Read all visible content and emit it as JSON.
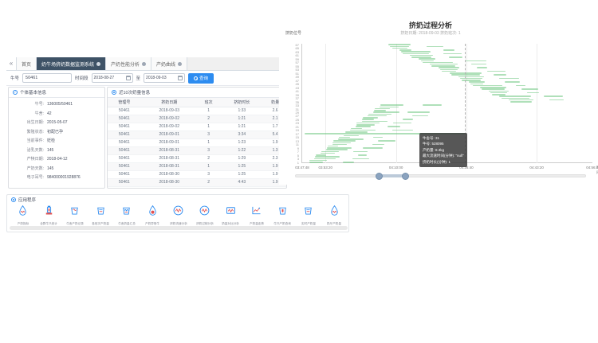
{
  "tabs": {
    "collapse_label": "«",
    "items": [
      {
        "label": "首页",
        "closable": false,
        "active": false
      },
      {
        "label": "奶牛场挤奶数据监测系统",
        "closable": true,
        "active": true
      },
      {
        "label": "产奶性能分析",
        "closable": true,
        "active": false
      },
      {
        "label": "产奶曲线",
        "closable": true,
        "active": false
      }
    ]
  },
  "search": {
    "cow_label": "牛号",
    "cow_value": "50461",
    "period_label": "时间段",
    "start_date": "2018-08-27",
    "to_label": "至",
    "end_date": "2018-09-03",
    "query_label": "查询"
  },
  "info": {
    "title": "个体基本信息",
    "rows": [
      {
        "label": "牛号:",
        "value": "136005/50461"
      },
      {
        "label": "牛舍:",
        "value": "42"
      },
      {
        "label": "出生日期:",
        "value": "2015-05-07"
      },
      {
        "label": "繁殖状态:",
        "value": "初配已孕"
      },
      {
        "label": "当前事件:",
        "value": "妊检"
      },
      {
        "label": "泌乳天数:",
        "value": "145"
      },
      {
        "label": "产犊日期:",
        "value": "2018-04-12"
      },
      {
        "label": "产奶天数:",
        "value": "145"
      },
      {
        "label": "电子耳号:",
        "value": "984000001928876"
      }
    ]
  },
  "records": {
    "title": "近10次奶量信息",
    "headers": [
      "管理号",
      "挤奶日期",
      "班次",
      "挤奶时长",
      "奶量"
    ],
    "rows": [
      [
        "50461",
        "2018-09-03",
        "1",
        "1:33",
        "2.6"
      ],
      [
        "50461",
        "2018-09-02",
        "2",
        "1:21",
        "2.1"
      ],
      [
        "50461",
        "2018-09-02",
        "1",
        "1:21",
        "1.7"
      ],
      [
        "50461",
        "2018-09-01",
        "3",
        "3:34",
        "5.4"
      ],
      [
        "50461",
        "2018-09-01",
        "1",
        "1:23",
        "1.9"
      ],
      [
        "50461",
        "2018-08-31",
        "3",
        "1:22",
        "1.3"
      ],
      [
        "50461",
        "2018-08-31",
        "2",
        "1:29",
        "2.3"
      ],
      [
        "50461",
        "2018-08-31",
        "1",
        "1:25",
        "1.9"
      ],
      [
        "50461",
        "2018-08-30",
        "3",
        "1:25",
        "1.9"
      ],
      [
        "50461",
        "2018-08-30",
        "2",
        "4:43",
        "1.9"
      ]
    ]
  },
  "apps": {
    "title": "应用程序",
    "items": [
      {
        "label": "产奶指标",
        "icon": "drop-wave"
      },
      {
        "label": "全群牛只统计",
        "icon": "hydrant"
      },
      {
        "label": "牛舍产奶记录",
        "icon": "bucket-red"
      },
      {
        "label": "各班次产奶量",
        "icon": "bucket-lines"
      },
      {
        "label": "牛舍奶量汇总",
        "icon": "bucket-wave"
      },
      {
        "label": "产奶异常牛",
        "icon": "drop-red"
      },
      {
        "label": "挤奶流速分析",
        "icon": "circle-wave"
      },
      {
        "label": "挤奶过程分析",
        "icon": "circle-wave"
      },
      {
        "label": "奶量对比分析",
        "icon": "envelope-wave"
      },
      {
        "label": "产奶量走势",
        "icon": "chart-line"
      },
      {
        "label": "牛只产奶查询",
        "icon": "bucket-phone"
      },
      {
        "label": "实时产奶量",
        "icon": "bucket-lines"
      },
      {
        "label": "奶厅产奶量",
        "icon": "drop-wave"
      }
    ]
  },
  "chart_data": {
    "type": "gantt",
    "title": "挤奶过程分析",
    "subtitle": "挤奶日期: 2018-09-03    挤奶班次: 1",
    "ylabel": "挤奶位号",
    "xlabel": "时间",
    "bar_color": "rgba(109,199,128,0.55)",
    "x_start": "03:47:48",
    "x_end": "04:56:42",
    "x_total_seconds": 4134,
    "x_ticks": [
      {
        "sec": 0,
        "label": "03:47:48"
      },
      {
        "sec": 332,
        "label": "03:53:20"
      },
      {
        "sec": 1332,
        "label": "04:10:00"
      },
      {
        "sec": 2332,
        "label": "04:26:40"
      },
      {
        "sec": 3332,
        "label": "04:43:20"
      },
      {
        "sec": 4134,
        "label": "04:56:42"
      }
    ],
    "y_positions_max": 67,
    "y_tick_step": 2,
    "pointer_sec": 2310,
    "zoom_range": [
      0.29,
      0.38
    ],
    "tooltip": {
      "lines": [
        "牛舍号: 31",
        "牛号: 528095",
        "产奶量: 8.3kg",
        "最大流速时间(分钟): \"null\"",
        "挤奶时长(分钟): 1"
      ]
    },
    "segments": [
      [
        1,
        97,
        193
      ],
      [
        2,
        106,
        246
      ],
      [
        3,
        175,
        299
      ],
      [
        4,
        184,
        352
      ],
      [
        5,
        193,
        145
      ],
      [
        6,
        262,
        198
      ],
      [
        7,
        271,
        251
      ],
      [
        8,
        340,
        304
      ],
      [
        9,
        349,
        357
      ],
      [
        10,
        358,
        150
      ],
      [
        11,
        427,
        203
      ],
      [
        12,
        436,
        256
      ],
      [
        13,
        445,
        309
      ],
      [
        14,
        514,
        362
      ],
      [
        15,
        523,
        155
      ],
      [
        16,
        592,
        208
      ],
      [
        17,
        30,
        2280
      ],
      [
        18,
        610,
        314
      ],
      [
        19,
        679,
        367
      ],
      [
        20,
        688,
        160
      ],
      [
        21,
        757,
        213
      ],
      [
        22,
        766,
        266
      ],
      [
        23,
        775,
        319
      ],
      [
        24,
        844,
        372
      ],
      [
        25,
        853,
        165
      ],
      [
        26,
        862,
        218
      ],
      [
        27,
        931,
        271
      ],
      [
        28,
        940,
        324
      ],
      [
        29,
        1009,
        377
      ],
      [
        30,
        1018,
        170
      ],
      [
        31,
        1027,
        223
      ],
      [
        32,
        1096,
        276
      ],
      [
        33,
        1105,
        329
      ],
      [
        1,
        576,
        161
      ],
      [
        3,
        712,
        243
      ],
      [
        5,
        788,
        125
      ],
      [
        7,
        724,
        207
      ],
      [
        9,
        860,
        289
      ],
      [
        11,
        996,
        171
      ],
      [
        13,
        1072,
        253
      ],
      [
        15,
        1008,
        135
      ],
      [
        19,
        1280,
        299
      ],
      [
        21,
        1216,
        181
      ],
      [
        23,
        1292,
        263
      ],
      [
        25,
        1428,
        145
      ],
      [
        27,
        1564,
        227
      ],
      [
        29,
        1500,
        309
      ],
      [
        33,
        1712,
        273
      ],
      [
        67,
        1227,
        309
      ],
      [
        66,
        1251,
        262
      ],
      [
        65,
        1275,
        215
      ],
      [
        64,
        1379,
        168
      ],
      [
        63,
        1403,
        421
      ],
      [
        62,
        1427,
        374
      ],
      [
        61,
        1531,
        327
      ],
      [
        60,
        1555,
        280
      ],
      [
        59,
        1659,
        233
      ],
      [
        58,
        1683,
        186
      ],
      [
        57,
        1707,
        439
      ],
      [
        56,
        1811,
        392
      ],
      [
        55,
        1835,
        345
      ],
      [
        54,
        1939,
        298
      ],
      [
        53,
        1963,
        251
      ],
      [
        52,
        1987,
        204
      ],
      [
        51,
        2091,
        457
      ],
      [
        50,
        2115,
        410
      ],
      [
        49,
        2219,
        363
      ],
      [
        48,
        2243,
        316
      ],
      [
        47,
        2267,
        269
      ],
      [
        46,
        2371,
        222
      ],
      [
        45,
        2395,
        175
      ],
      [
        44,
        2419,
        428
      ],
      [
        43,
        2523,
        381
      ],
      [
        42,
        2547,
        334
      ],
      [
        41,
        2651,
        287
      ],
      [
        40,
        2675,
        240
      ],
      [
        39,
        2699,
        193
      ],
      [
        38,
        2803,
        446
      ],
      [
        37,
        2827,
        399
      ],
      [
        36,
        2931,
        352
      ],
      [
        35,
        2955,
        305
      ],
      [
        66,
        1769,
        232
      ],
      [
        64,
        2001,
        158
      ],
      [
        62,
        2003,
        264
      ],
      [
        60,
        2085,
        190
      ],
      [
        58,
        2317,
        296
      ],
      [
        56,
        2399,
        222
      ],
      [
        54,
        2481,
        148
      ],
      [
        52,
        2633,
        254
      ],
      [
        50,
        2715,
        180
      ],
      [
        48,
        2797,
        286
      ],
      [
        46,
        2879,
        212
      ],
      [
        44,
        3031,
        138
      ],
      [
        42,
        3113,
        244
      ],
      [
        40,
        3195,
        170
      ],
      [
        38,
        3427,
        276
      ],
      [
        36,
        3509,
        202
      ]
    ]
  }
}
